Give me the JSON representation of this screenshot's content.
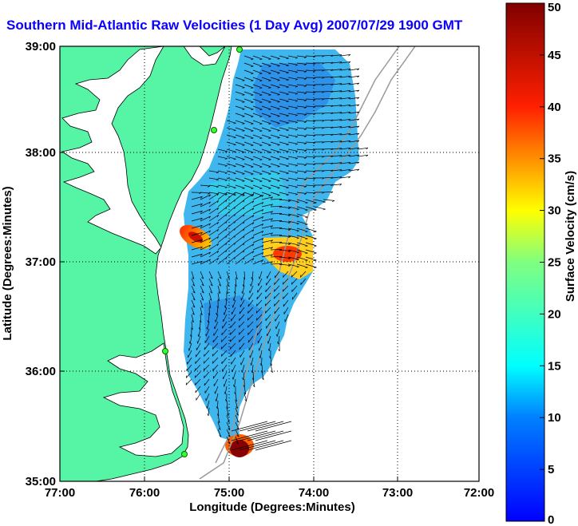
{
  "title": "Southern Mid-Atlantic Raw Velocities (1 Day Avg) 2007/07/29 1900 GMT",
  "map": {
    "xlabel": "Longitude (Degrees:Minutes)",
    "ylabel": "Latitude (Degrees:Minutes)",
    "x_ticks": [
      "77:00",
      "76:00",
      "75:00",
      "74:00",
      "73:00",
      "72:00"
    ],
    "y_ticks": [
      "39:00",
      "38:00",
      "37:00",
      "36:00",
      "35:00"
    ]
  },
  "colorbar": {
    "label": "Surface Velocity (cm/s)",
    "ticks": [
      "50",
      "45",
      "40",
      "35",
      "30",
      "25",
      "20",
      "15",
      "10",
      "5",
      "0"
    ],
    "colors": [
      "#0000ff",
      "#00ffff",
      "#ffff00",
      "#ff0000",
      "#800000"
    ]
  },
  "colors": {
    "land": "#55f5a5",
    "water": "#ffffff",
    "title": "#0a00ff",
    "bathymetry": "#9a9a9a"
  }
}
